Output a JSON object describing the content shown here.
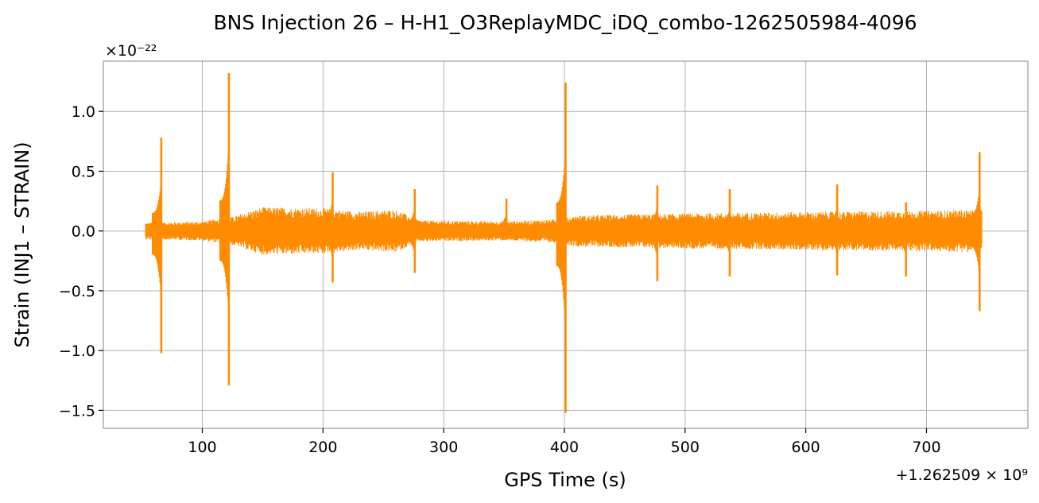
{
  "chart_data": {
    "type": "line",
    "title": "BNS Injection 26 – H-H1_O3ReplayMDC_iDQ_combo-1262505984-4096",
    "xlabel": "GPS Time (s)",
    "ylabel": "Strain (INJ1 – STRAIN)",
    "x_offset_text": "+1.262509 × 10⁹",
    "y_scale_text": "×10⁻²²",
    "xlim": [
      18,
      784
    ],
    "ylim": [
      -1.65,
      1.42
    ],
    "x_ticks": [
      100,
      200,
      300,
      400,
      500,
      600,
      700
    ],
    "x_tick_labels": [
      "100",
      "200",
      "300",
      "400",
      "500",
      "600",
      "700"
    ],
    "y_ticks": [
      -1.5,
      -1.0,
      -0.5,
      0.0,
      0.5,
      1.0
    ],
    "y_tick_labels": [
      "−1.5",
      "−1.0",
      "−0.5",
      "0.0",
      "0.5",
      "1.0"
    ],
    "grid": true,
    "series": [
      {
        "color": "#ff8c00",
        "x_range": [
          53,
          746
        ],
        "baseline_envelope": [
          {
            "x": 53,
            "amp": 0.07
          },
          {
            "x": 100,
            "amp": 0.08
          },
          {
            "x": 125,
            "amp": 0.12
          },
          {
            "x": 150,
            "amp": 0.2
          },
          {
            "x": 200,
            "amp": 0.19
          },
          {
            "x": 230,
            "amp": 0.16
          },
          {
            "x": 260,
            "amp": 0.18
          },
          {
            "x": 280,
            "amp": 0.09
          },
          {
            "x": 350,
            "amp": 0.08
          },
          {
            "x": 395,
            "amp": 0.1
          },
          {
            "x": 410,
            "amp": 0.13
          },
          {
            "x": 460,
            "amp": 0.14
          },
          {
            "x": 520,
            "amp": 0.15
          },
          {
            "x": 600,
            "amp": 0.16
          },
          {
            "x": 700,
            "amp": 0.17
          },
          {
            "x": 746,
            "amp": 0.18
          }
        ],
        "spikes": [
          {
            "x": 66,
            "max": 0.78,
            "min": -1.02
          },
          {
            "x": 122,
            "max": 1.32,
            "min": -1.29
          },
          {
            "x": 208,
            "max": 0.49,
            "min": -0.43
          },
          {
            "x": 276,
            "max": 0.35,
            "min": -0.35
          },
          {
            "x": 352,
            "max": 0.27,
            "min": -0.05
          },
          {
            "x": 401,
            "max": 1.24,
            "min": -1.52
          },
          {
            "x": 477,
            "max": 0.38,
            "min": -0.42
          },
          {
            "x": 537,
            "max": 0.35,
            "min": -0.38
          },
          {
            "x": 626,
            "max": 0.39,
            "min": -0.37
          },
          {
            "x": 683,
            "max": 0.24,
            "min": -0.38
          },
          {
            "x": 744,
            "max": 0.66,
            "min": -0.67
          }
        ]
      }
    ]
  }
}
